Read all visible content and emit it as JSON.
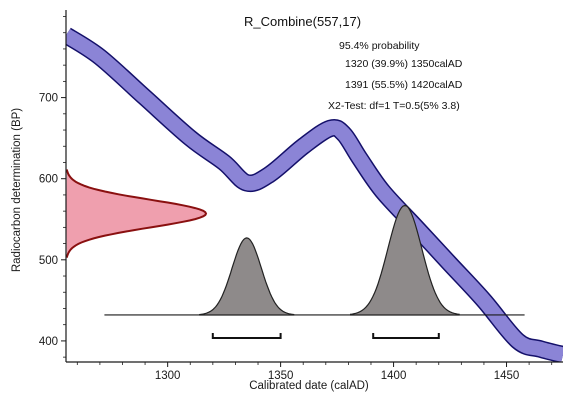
{
  "chart_data": {
    "type": "area",
    "title": "R_Combine(557,17)",
    "xlabel": "Calibrated date (calAD)",
    "ylabel": "Radiocarbon determination (BP)",
    "xlim": [
      1255,
      1475
    ],
    "ylim": [
      374,
      808
    ],
    "x_ticks": [
      1300,
      1350,
      1400,
      1450
    ],
    "y_ticks": [
      400,
      500,
      600,
      700
    ],
    "annotations": [
      "95.4% probability",
      "1320 (39.9%) 1350calAD",
      "1391 (55.5%) 1420calAD",
      "X2-Test: df=1 T=0.5(5% 3.8)"
    ],
    "calibration_curve": {
      "x": [
        1255,
        1270,
        1290,
        1310,
        1325,
        1335,
        1345,
        1360,
        1372,
        1378,
        1385,
        1395,
        1410,
        1425,
        1440,
        1455,
        1465,
        1475
      ],
      "y": [
        777,
        750,
        700,
        650,
        620,
        595,
        605,
        640,
        662,
        655,
        625,
        585,
        540,
        495,
        450,
        400,
        390,
        383
      ],
      "band_width_bp": 9,
      "color": "#8b84d6",
      "edge_color": "#14106a"
    },
    "measurement": {
      "name": "R_Combine",
      "mean_bp": 557,
      "sigma_bp": 17,
      "color": "#ef9fae",
      "edge_color": "#8a1010"
    },
    "posterior_distribution": {
      "baseline_bp": 432,
      "line_start": 1272,
      "line_end": 1458,
      "peaks": [
        {
          "mode": 1335,
          "sigma": 6.5,
          "height_bp": 95
        },
        {
          "mode": 1405,
          "sigma": 7.5,
          "height_bp": 135
        }
      ],
      "color": "#8e8a8a",
      "edge_color": "#222222"
    },
    "ranges_95": [
      {
        "start": 1320,
        "end": 1350
      },
      {
        "start": 1391,
        "end": 1420
      }
    ]
  }
}
